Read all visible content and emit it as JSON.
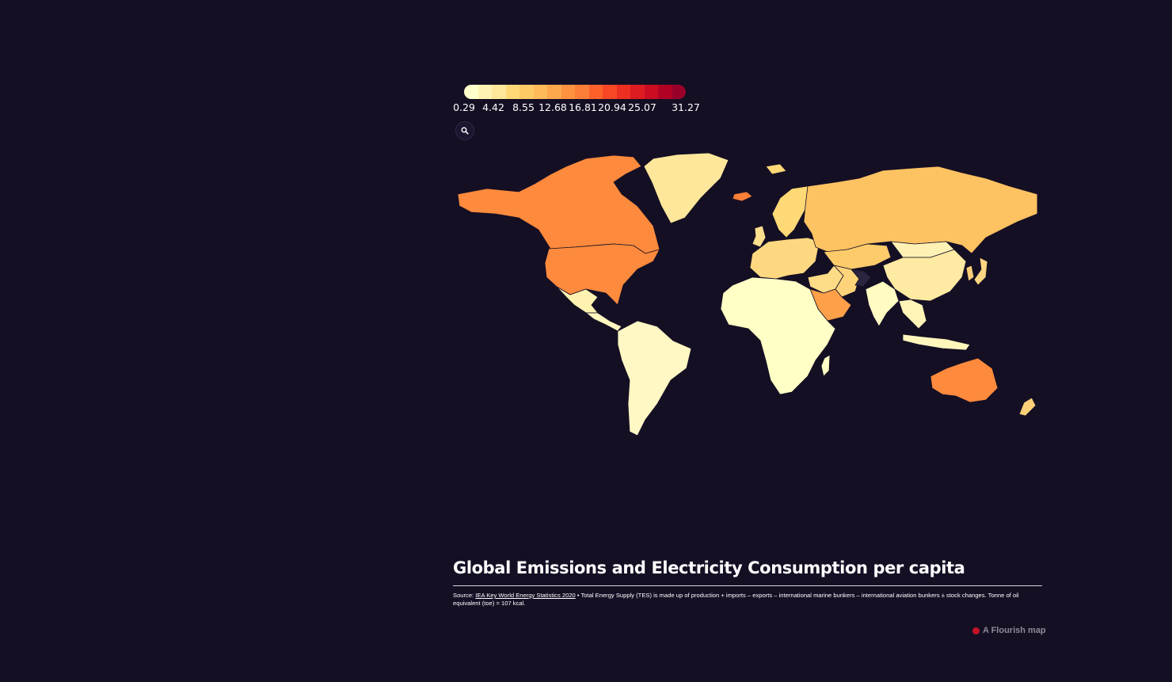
{
  "legend": {
    "ticks": [
      "0.29",
      "4.42",
      "8.55",
      "12.68",
      "16.81",
      "20.94",
      "25.07",
      "31.27"
    ],
    "colors": [
      "#ffffcc",
      "#fff3b2",
      "#ffe899",
      "#fed976",
      "#feca66",
      "#febb58",
      "#fea84d",
      "#fd9241",
      "#fd7f37",
      "#fc612c",
      "#f74725",
      "#ed2f21",
      "#de1b20",
      "#ca0d21",
      "#b20223",
      "#98002a"
    ]
  },
  "search": {
    "icon": "search-icon"
  },
  "map": {
    "empty_color": "#2b2540",
    "regions": [
      {
        "name": "Canada",
        "color": "#fd8a3d"
      },
      {
        "name": "United States",
        "color": "#fd8a3d"
      },
      {
        "name": "Greenland",
        "color": "#fee79a"
      },
      {
        "name": "Mexico",
        "color": "#fff2b0"
      },
      {
        "name": "Central America",
        "color": "#fff6c0"
      },
      {
        "name": "South America",
        "color": "#fff7c4"
      },
      {
        "name": "Africa",
        "color": "#ffffc6"
      },
      {
        "name": "Madagascar",
        "color": "#ffffc6"
      },
      {
        "name": "Western Europe",
        "color": "#fed880"
      },
      {
        "name": "Scandinavia",
        "color": "#fed976"
      },
      {
        "name": "Russia",
        "color": "#fdc262"
      },
      {
        "name": "Kazakhstan",
        "color": "#fecb6a"
      },
      {
        "name": "Middle East",
        "color": "#fedb86"
      },
      {
        "name": "Saudi Arabia",
        "color": "#fda049"
      },
      {
        "name": "Iran",
        "color": "#fed37a"
      },
      {
        "name": "Afghanistan",
        "color": "#2b2540"
      },
      {
        "name": "China",
        "color": "#feeaa2"
      },
      {
        "name": "India",
        "color": "#fffbc2"
      },
      {
        "name": "Southeast Asia",
        "color": "#fff4b8"
      },
      {
        "name": "Indonesia",
        "color": "#fff6bc"
      },
      {
        "name": "Japan",
        "color": "#fdd682"
      },
      {
        "name": "Korea",
        "color": "#fdce78"
      },
      {
        "name": "Mongolia",
        "color": "#fff1b4"
      },
      {
        "name": "Australia",
        "color": "#fd8a3d"
      },
      {
        "name": "New Zealand",
        "color": "#fed077"
      },
      {
        "name": "Iceland",
        "color": "#fd7f37"
      },
      {
        "name": "United Kingdom",
        "color": "#fedf8e"
      },
      {
        "name": "Svalbard",
        "color": "#fed976"
      }
    ]
  },
  "footer": {
    "title": "Global Emissions and Electricity Consumption per capita",
    "source_prefix": "Source: ",
    "source_link": "IEA Key World Energy Statistics 2020",
    "source_text": " • Total Energy Supply (TES) is made up of production + imports – exports – international marine bunkers – international aviation bunkers ± stock changes. Tonne of oil equivalent (toe) = 107 kcal.",
    "credit": "A Flourish map"
  }
}
